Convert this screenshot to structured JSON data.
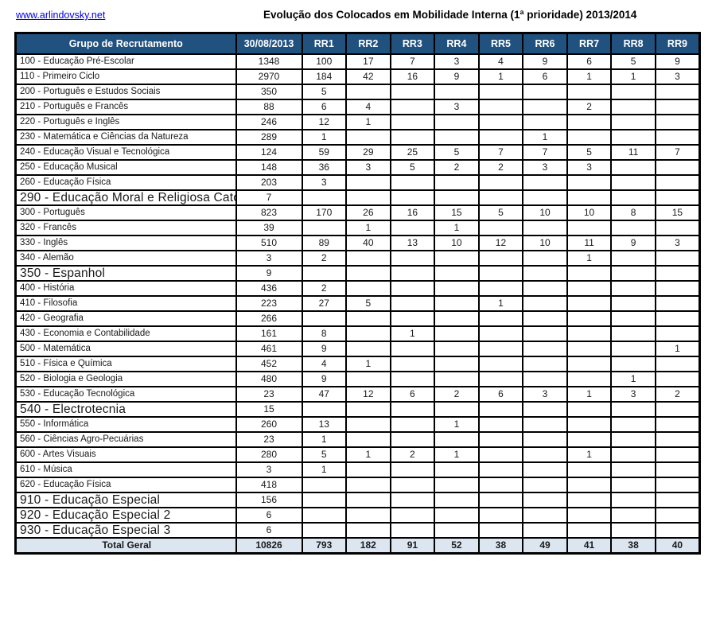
{
  "page": {
    "link": "www.arlindovsky.net",
    "title": "Evolução dos Colocados em Mobilidade Interna (1ª prioridade) 2013/2014"
  },
  "colors": {
    "header_bg": "#21517f",
    "header_text": "#ffffff",
    "total_bg": "#dce6f1",
    "border": "#000000",
    "link": "#0000ee"
  },
  "table": {
    "columns": [
      "Grupo de Recrutamento",
      "30/08/2013",
      "RR1",
      "RR2",
      "RR3",
      "RR4",
      "RR5",
      "RR6",
      "RR7",
      "RR8",
      "RR9"
    ],
    "rows": [
      {
        "label": "100 - Educação Pré-Escolar",
        "large": false,
        "values": [
          "1348",
          "100",
          "17",
          "7",
          "3",
          "4",
          "9",
          "6",
          "5",
          "9"
        ]
      },
      {
        "label": "110 - Primeiro Ciclo",
        "large": false,
        "values": [
          "2970",
          "184",
          "42",
          "16",
          "9",
          "1",
          "6",
          "1",
          "1",
          "3"
        ]
      },
      {
        "label": "200 - Português e Estudos Sociais",
        "large": false,
        "values": [
          "350",
          "5",
          "",
          "",
          "",
          "",
          "",
          "",
          "",
          ""
        ]
      },
      {
        "label": "210 - Português e Francês",
        "large": false,
        "values": [
          "88",
          "6",
          "4",
          "",
          "3",
          "",
          "",
          "2",
          "",
          ""
        ]
      },
      {
        "label": "220 - Português e Inglês",
        "large": false,
        "values": [
          "246",
          "12",
          "1",
          "",
          "",
          "",
          "",
          "",
          "",
          ""
        ]
      },
      {
        "label": "230 - Matemática e Ciências da Natureza",
        "large": false,
        "values": [
          "289",
          "1",
          "",
          "",
          "",
          "",
          "1",
          "",
          "",
          ""
        ]
      },
      {
        "label": "240 - Educação Visual e Tecnológica",
        "large": false,
        "values": [
          "124",
          "59",
          "29",
          "25",
          "5",
          "7",
          "7",
          "5",
          "11",
          "7"
        ]
      },
      {
        "label": "250 - Educação Musical",
        "large": false,
        "values": [
          "148",
          "36",
          "3",
          "5",
          "2",
          "2",
          "3",
          "3",
          "",
          ""
        ]
      },
      {
        "label": "260 - Educação Física",
        "large": false,
        "values": [
          "203",
          "3",
          "",
          "",
          "",
          "",
          "",
          "",
          "",
          ""
        ]
      },
      {
        "label": "290 - Educação Moral e Religiosa Católica",
        "large": true,
        "values": [
          "7",
          "",
          "",
          "",
          "",
          "",
          "",
          "",
          "",
          ""
        ]
      },
      {
        "label": "300 - Português",
        "large": false,
        "values": [
          "823",
          "170",
          "26",
          "16",
          "15",
          "5",
          "10",
          "10",
          "8",
          "15"
        ]
      },
      {
        "label": "320 - Francês",
        "large": false,
        "values": [
          "39",
          "",
          "1",
          "",
          "1",
          "",
          "",
          "",
          "",
          ""
        ]
      },
      {
        "label": "330 - Inglês",
        "large": false,
        "values": [
          "510",
          "89",
          "40",
          "13",
          "10",
          "12",
          "10",
          "11",
          "9",
          "3"
        ]
      },
      {
        "label": "340 - Alemão",
        "large": false,
        "values": [
          "3",
          "2",
          "",
          "",
          "",
          "",
          "",
          "1",
          "",
          ""
        ]
      },
      {
        "label": "350 - Espanhol",
        "large": true,
        "values": [
          "9",
          "",
          "",
          "",
          "",
          "",
          "",
          "",
          "",
          ""
        ]
      },
      {
        "label": "400 - História",
        "large": false,
        "values": [
          "436",
          "2",
          "",
          "",
          "",
          "",
          "",
          "",
          "",
          ""
        ]
      },
      {
        "label": "410 - Filosofia",
        "large": false,
        "values": [
          "223",
          "27",
          "5",
          "",
          "",
          "1",
          "",
          "",
          "",
          ""
        ]
      },
      {
        "label": "420 - Geografia",
        "large": false,
        "values": [
          "266",
          "",
          "",
          "",
          "",
          "",
          "",
          "",
          "",
          ""
        ]
      },
      {
        "label": "430 - Economia  e Contabilidade",
        "large": false,
        "values": [
          "161",
          "8",
          "",
          "1",
          "",
          "",
          "",
          "",
          "",
          ""
        ]
      },
      {
        "label": "500 - Matemática",
        "large": false,
        "values": [
          "461",
          "9",
          "",
          "",
          "",
          "",
          "",
          "",
          "",
          "1"
        ]
      },
      {
        "label": "510 - Física e Química",
        "large": false,
        "values": [
          "452",
          "4",
          "1",
          "",
          "",
          "",
          "",
          "",
          "",
          ""
        ]
      },
      {
        "label": "520 - Biologia e Geologia",
        "large": false,
        "values": [
          "480",
          "9",
          "",
          "",
          "",
          "",
          "",
          "",
          "1",
          ""
        ]
      },
      {
        "label": "530 - Educação Tecnológica",
        "large": false,
        "values": [
          "23",
          "47",
          "12",
          "6",
          "2",
          "6",
          "3",
          "1",
          "3",
          "2"
        ]
      },
      {
        "label": "540 - Electrotecnia",
        "large": true,
        "values": [
          "15",
          "",
          "",
          "",
          "",
          "",
          "",
          "",
          "",
          ""
        ]
      },
      {
        "label": "550 - Informática",
        "large": false,
        "values": [
          "260",
          "13",
          "",
          "",
          "1",
          "",
          "",
          "",
          "",
          ""
        ]
      },
      {
        "label": "560 - Ciências Agro-Pecuárias",
        "large": false,
        "values": [
          "23",
          "1",
          "",
          "",
          "",
          "",
          "",
          "",
          "",
          ""
        ]
      },
      {
        "label": "600 - Artes Visuais",
        "large": false,
        "values": [
          "280",
          "5",
          "1",
          "2",
          "1",
          "",
          "",
          "1",
          "",
          ""
        ]
      },
      {
        "label": "610 - Música",
        "large": false,
        "values": [
          "3",
          "1",
          "",
          "",
          "",
          "",
          "",
          "",
          "",
          ""
        ]
      },
      {
        "label": "620 - Educação Física",
        "large": false,
        "values": [
          "418",
          "",
          "",
          "",
          "",
          "",
          "",
          "",
          "",
          ""
        ]
      },
      {
        "label": "910 - Educação Especial",
        "large": true,
        "values": [
          "156",
          "",
          "",
          "",
          "",
          "",
          "",
          "",
          "",
          ""
        ]
      },
      {
        "label": "920 - Educação Especial 2",
        "large": true,
        "values": [
          "6",
          "",
          "",
          "",
          "",
          "",
          "",
          "",
          "",
          ""
        ]
      },
      {
        "label": "930 - Educação Especial 3",
        "large": true,
        "values": [
          "6",
          "",
          "",
          "",
          "",
          "",
          "",
          "",
          "",
          ""
        ]
      }
    ],
    "total": {
      "label": "Total Geral",
      "values": [
        "10826",
        "793",
        "182",
        "91",
        "52",
        "38",
        "49",
        "41",
        "38",
        "40"
      ]
    }
  }
}
